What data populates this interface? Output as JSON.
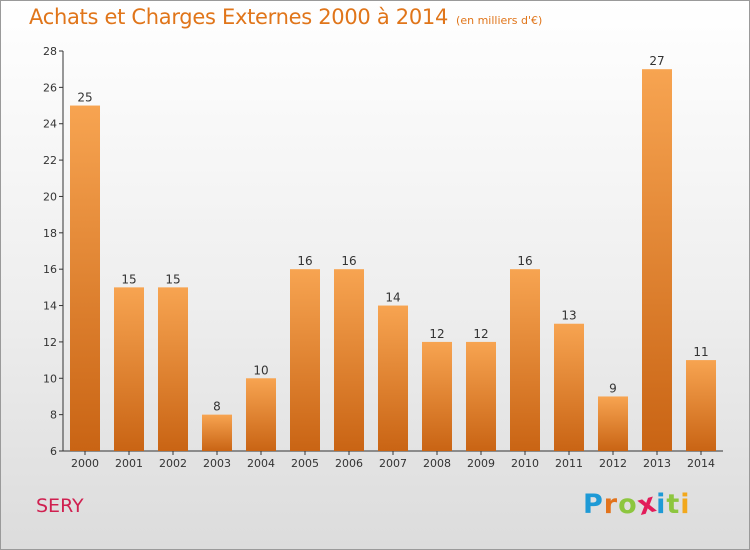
{
  "header": {
    "title": "Achats et Charges Externes 2000 à 2014",
    "subtitle": "(en milliers d'€)"
  },
  "footer": {
    "place": "SERY",
    "logo_letters": [
      "P",
      "r",
      "o",
      "x",
      "i",
      "t",
      "i"
    ],
    "logo_colors": [
      "#1e9ad6",
      "#e2731c",
      "#8dc63f",
      "#e21c5a",
      "#1e9ad6",
      "#8dc63f",
      "#f2a81c"
    ]
  },
  "colors": {
    "bar_top": "#f7a451",
    "bar_bottom": "#c96414",
    "label": "#333333",
    "axis": "#333333"
  },
  "chart_data": {
    "type": "bar",
    "title": "Achats et Charges Externes 2000 à 2014",
    "subtitle": "(en milliers d'€)",
    "categories": [
      "2000",
      "2001",
      "2002",
      "2003",
      "2004",
      "2005",
      "2006",
      "2007",
      "2008",
      "2009",
      "2010",
      "2011",
      "2012",
      "2013",
      "2014"
    ],
    "values": [
      25,
      15,
      15,
      8,
      10,
      16,
      16,
      14,
      12,
      12,
      16,
      13,
      9,
      27,
      11
    ],
    "ylim": [
      6,
      28
    ],
    "yticks": [
      6,
      8,
      10,
      12,
      14,
      16,
      18,
      20,
      22,
      24,
      26,
      28
    ],
    "grid": false,
    "data_labels": true
  }
}
